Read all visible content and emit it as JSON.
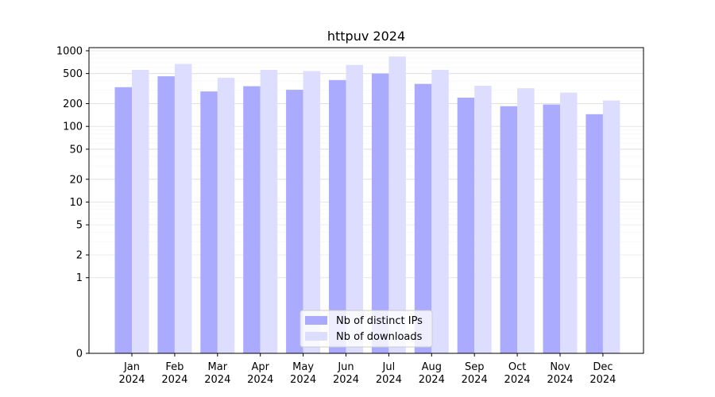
{
  "chart_data": {
    "type": "bar",
    "title": "httpuv 2024",
    "xlabel": "",
    "ylabel": "",
    "yscale": "symlog",
    "ylim": [
      0,
      1100
    ],
    "yticks": [
      0,
      1,
      2,
      5,
      10,
      20,
      50,
      100,
      200,
      500,
      1000
    ],
    "ytick_labels": [
      "0",
      "1",
      "2",
      "5",
      "10",
      "20",
      "50",
      "100",
      "200",
      "500",
      "1000"
    ],
    "categories": [
      [
        "Jan",
        "2024"
      ],
      [
        "Feb",
        "2024"
      ],
      [
        "Mar",
        "2024"
      ],
      [
        "Apr",
        "2024"
      ],
      [
        "May",
        "2024"
      ],
      [
        "Jun",
        "2024"
      ],
      [
        "Jul",
        "2024"
      ],
      [
        "Aug",
        "2024"
      ],
      [
        "Sep",
        "2024"
      ],
      [
        "Oct",
        "2024"
      ],
      [
        "Nov",
        "2024"
      ],
      [
        "Dec",
        "2024"
      ]
    ],
    "series": [
      {
        "name": "Nb of distinct IPs",
        "color": "#aaaaff",
        "values": [
          330,
          460,
          290,
          340,
          305,
          410,
          500,
          365,
          240,
          185,
          195,
          145
        ]
      },
      {
        "name": "Nb of downloads",
        "color": "#ddddff",
        "values": [
          560,
          670,
          440,
          560,
          540,
          650,
          840,
          560,
          345,
          320,
          280,
          220
        ]
      }
    ],
    "legend": "bottom-center",
    "grid": true
  }
}
